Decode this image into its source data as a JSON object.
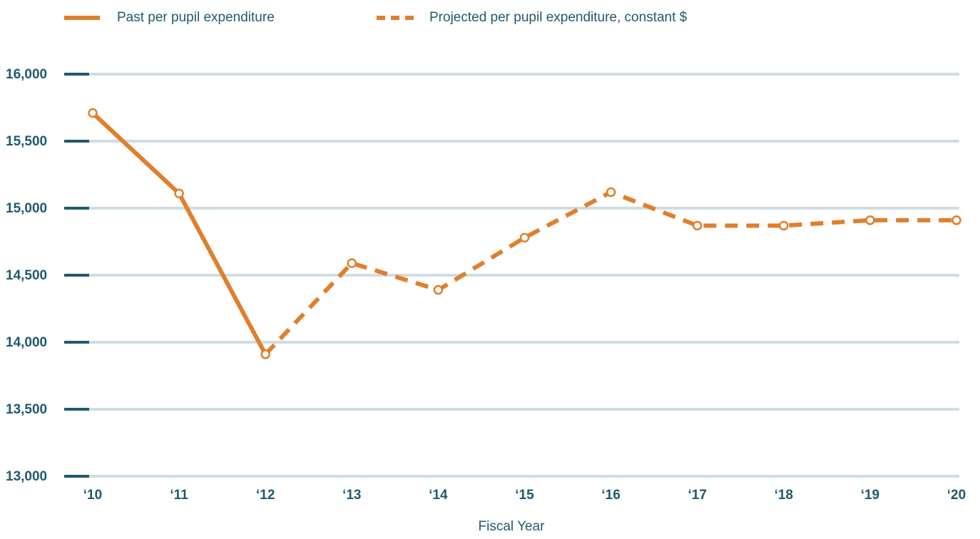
{
  "chart_data": {
    "type": "line",
    "x_label": "Fiscal Year",
    "categories": [
      "‘10",
      "‘11",
      "‘12",
      "‘13",
      "‘14",
      "‘15",
      "‘16",
      "‘17",
      "‘18",
      "‘19",
      "‘20"
    ],
    "series": [
      {
        "name": "Past per pupil expenditure",
        "color": "#e07f2c",
        "style": "solid",
        "values": [
          15710,
          15110,
          13910,
          null,
          null,
          null,
          null,
          null,
          null,
          null,
          null
        ]
      },
      {
        "name": "Projected per pupil expenditure, constant $",
        "color": "#e07f2c",
        "style": "dashed",
        "values": [
          null,
          null,
          13910,
          14590,
          14390,
          14780,
          15120,
          14870,
          14870,
          14910,
          14910
        ]
      }
    ],
    "ylim": [
      13000,
      16000
    ],
    "yticks": [
      {
        "value": 13000,
        "label": "13,000"
      },
      {
        "value": 13500,
        "label": "13,500"
      },
      {
        "value": 14000,
        "label": "14,000"
      },
      {
        "value": 14500,
        "label": "14,500"
      },
      {
        "value": 15000,
        "label": "15,000"
      },
      {
        "value": 15500,
        "label": "15,500"
      },
      {
        "value": 16000,
        "label": "16,000"
      }
    ],
    "grid": true
  }
}
